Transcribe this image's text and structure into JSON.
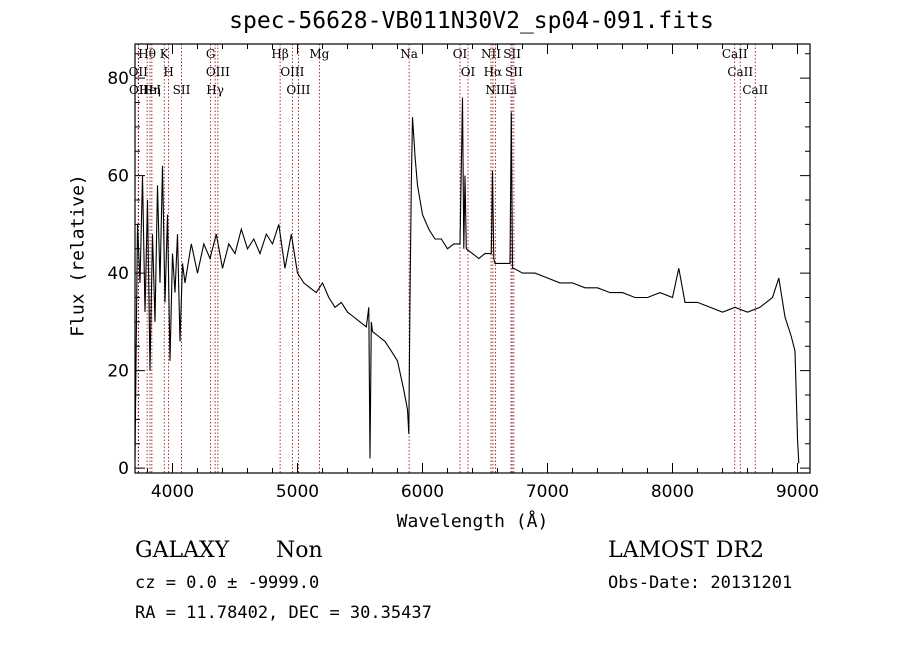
{
  "chart_data": {
    "type": "line",
    "title": "spec-56628-VB011N30V2_sp04-091.fits",
    "xlabel": "Wavelength (Å)",
    "ylabel": "Flux (relative)",
    "xlim": [
      3700,
      9100
    ],
    "ylim": [
      -1,
      87
    ],
    "xticks": [
      4000,
      5000,
      6000,
      7000,
      8000,
      9000
    ],
    "yticks": [
      0,
      20,
      40,
      60,
      80
    ],
    "grid": false,
    "series": [
      {
        "x": [
          3700,
          3720,
          3740,
          3760,
          3780,
          3800,
          3820,
          3840,
          3860,
          3880,
          3900,
          3920,
          3940,
          3960,
          3980,
          4000,
          4020,
          4040,
          4060,
          4080,
          4100,
          4150,
          4200,
          4250,
          4300,
          4350,
          4400,
          4450,
          4500,
          4550,
          4600,
          4650,
          4700,
          4750,
          4800,
          4850,
          4900,
          4950,
          5000,
          5050,
          5100,
          5150,
          5200,
          5250,
          5300,
          5350,
          5400,
          5450,
          5500,
          5550,
          5570,
          5580,
          5590,
          5600,
          5650,
          5700,
          5750,
          5800,
          5850,
          5880,
          5890,
          5900,
          5910,
          5920,
          5930,
          5940,
          5960,
          6000,
          6050,
          6100,
          6150,
          6200,
          6250,
          6300,
          6320,
          6330,
          6340,
          6350,
          6400,
          6450,
          6500,
          6550,
          6560,
          6570,
          6580,
          6600,
          6650,
          6700,
          6710,
          6720,
          6730,
          6800,
          6900,
          7000,
          7100,
          7200,
          7300,
          7400,
          7500,
          7600,
          7700,
          7800,
          7900,
          8000,
          8050,
          8100,
          8200,
          8300,
          8400,
          8500,
          8600,
          8700,
          8800,
          8850,
          8900,
          8950,
          8980,
          9000,
          9010
        ],
        "y": [
          2,
          50,
          38,
          60,
          32,
          55,
          20,
          48,
          30,
          58,
          38,
          62,
          34,
          52,
          22,
          44,
          36,
          48,
          26,
          42,
          38,
          46,
          40,
          46,
          43,
          48,
          41,
          46,
          44,
          49,
          45,
          47,
          44,
          48,
          46,
          50,
          41,
          48,
          40,
          38,
          37,
          36,
          38,
          35,
          33,
          34,
          32,
          31,
          30,
          29,
          33,
          2,
          30,
          28,
          27,
          26,
          24,
          22,
          16,
          12,
          7,
          35,
          58,
          72,
          68,
          64,
          58,
          52,
          49,
          47,
          47,
          45,
          46,
          46,
          76,
          45,
          60,
          45,
          44,
          43,
          44,
          44,
          61,
          43,
          42,
          42,
          42,
          42,
          73,
          41,
          41,
          40,
          40,
          39,
          38,
          38,
          37,
          37,
          36,
          36,
          35,
          35,
          36,
          35,
          41,
          34,
          34,
          33,
          32,
          33,
          32,
          33,
          35,
          39,
          31,
          27,
          24,
          6,
          1
        ]
      }
    ],
    "line_markers": {
      "labels": [
        "Hθ",
        "OII",
        "OII",
        "HeI",
        "Hη",
        "K",
        "H",
        "SII",
        "G",
        "OIII",
        "Hγ",
        "Hβ",
        "OIII",
        "OIII",
        "Mg",
        "Na",
        "OI",
        "OI",
        "NII",
        "Hα",
        "NII",
        "SII",
        "SII",
        "Li",
        "CaII",
        "CaII",
        "CaII"
      ],
      "wavelengths": [
        3797,
        3726,
        3729,
        3820,
        3835,
        3934,
        3969,
        4072,
        4305,
        4363,
        4341,
        4861,
        4959,
        5007,
        5175,
        5893,
        6300,
        6364,
        6548,
        6563,
        6583,
        6717,
        6731,
        6708,
        8498,
        8542,
        8662
      ]
    }
  },
  "footer": {
    "object_class": "GALAXY",
    "object_subclass": "Non",
    "survey": "LAMOST DR2",
    "redshift_text": "cz = 0.0 ± -9999.0",
    "obs_date_text": "Obs-Date: 20131201",
    "coords_text": "RA =  11.78402, DEC =  30.35437"
  }
}
